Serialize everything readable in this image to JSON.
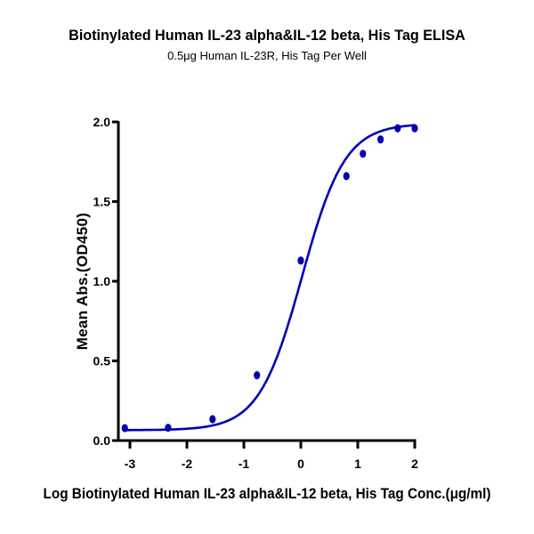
{
  "chart_data": {
    "type": "scatter",
    "title": "Biotinylated Human IL-23 alpha&IL-12 beta, His Tag ELISA",
    "subtitle": "0.5μg Human IL-23R, His Tag Per Well",
    "xlabel": "Log Biotinylated Human IL-23 alpha&IL-12 beta, His Tag Conc.(μg/ml)",
    "ylabel": "Mean Abs.(OD450)",
    "xlim": [
      -3.2,
      2
    ],
    "ylim": [
      0,
      2.0
    ],
    "x_ticks": [
      "-3",
      "-2",
      "-1",
      "0",
      "1",
      "2"
    ],
    "y_ticks": [
      "0.0",
      "0.5",
      "1.0",
      "1.5",
      "2.0"
    ],
    "grid": false,
    "legend": null,
    "series": [
      {
        "name": "Mean Abs.(OD450)",
        "color": "#0000b3",
        "points": [
          {
            "x": -3.09,
            "y": 0.078
          },
          {
            "x": -2.33,
            "y": 0.08
          },
          {
            "x": -1.55,
            "y": 0.134
          },
          {
            "x": -0.77,
            "y": 0.41
          },
          {
            "x": 0.0,
            "y": 1.13
          },
          {
            "x": 0.8,
            "y": 1.66
          },
          {
            "x": 1.09,
            "y": 1.8
          },
          {
            "x": 1.4,
            "y": 1.89
          },
          {
            "x": 1.7,
            "y": 1.96
          },
          {
            "x": 2.0,
            "y": 1.96
          }
        ],
        "fit": "4PL sigmoid",
        "fit_params": {
          "bottom": 0.065,
          "top": 1.99,
          "log_ec50": 0.02,
          "hill": 1.15
        }
      }
    ]
  }
}
